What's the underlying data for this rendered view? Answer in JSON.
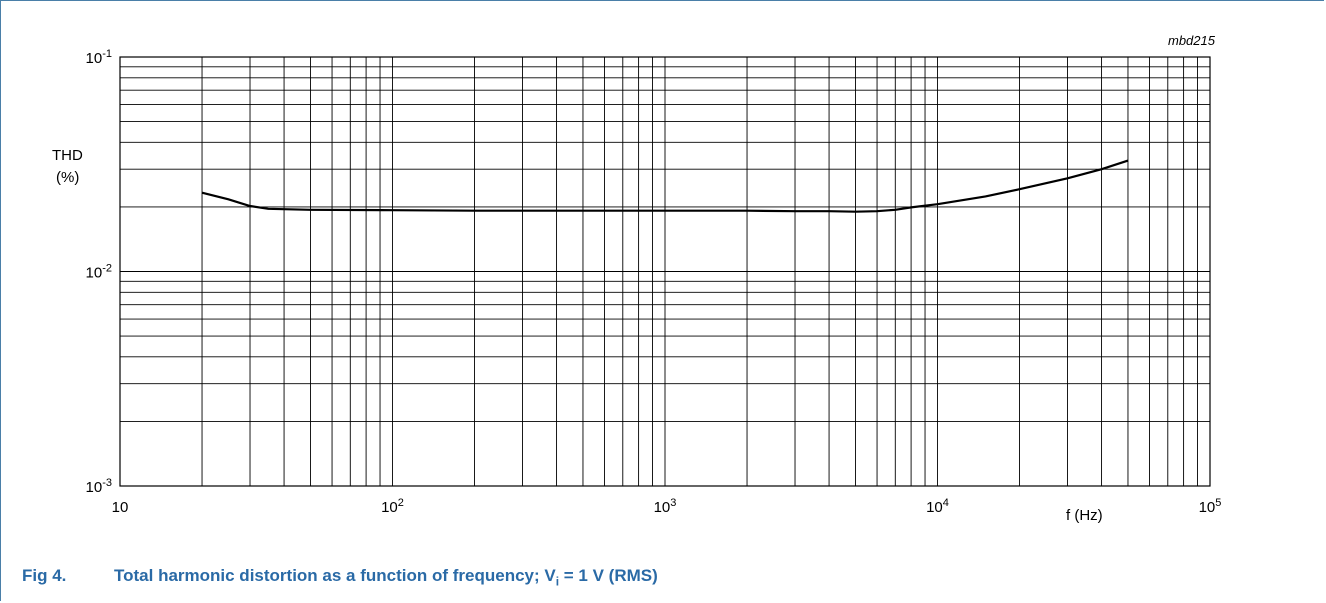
{
  "caption": {
    "figure": "Fig 4.",
    "title_main": "Total harmonic distortion as a function of frequency; V",
    "title_sub": "i",
    "title_end": " = 1 V (RMS)"
  },
  "colors": {
    "caption": "#2a6aa6",
    "grid": "#000000",
    "curve": "#000000",
    "frame": "#4a7fa8"
  },
  "chart_data": {
    "type": "line",
    "code": "mbd215",
    "xlabel": "f (Hz)",
    "ylabel_line1": "THD",
    "ylabel_line2": "(%)",
    "x_scale": "log",
    "y_scale": "log",
    "xlim": [
      10,
      100000
    ],
    "ylim": [
      0.001,
      0.1
    ],
    "grid": true,
    "x_ticks": [
      {
        "base": "10",
        "exp": "",
        "value": 10
      },
      {
        "base": "10",
        "exp": "2",
        "value": 100
      },
      {
        "base": "10",
        "exp": "3",
        "value": 1000
      },
      {
        "base": "10",
        "exp": "4",
        "value": 10000
      },
      {
        "base": "10",
        "exp": "5",
        "value": 100000
      }
    ],
    "y_ticks": [
      {
        "base": "10",
        "exp": "-1",
        "value": 0.1
      },
      {
        "base": "10",
        "exp": "-2",
        "value": 0.01
      },
      {
        "base": "10",
        "exp": "-3",
        "value": 0.001
      }
    ],
    "series": [
      {
        "x": [
          20,
          25,
          30,
          35,
          50,
          100,
          200,
          500,
          1000,
          2000,
          3000,
          4000,
          5000,
          6000,
          7000,
          8000,
          10000,
          15000,
          20000,
          30000,
          40000,
          50000
        ],
        "y": [
          0.0233,
          0.0217,
          0.0202,
          0.0196,
          0.0194,
          0.0193,
          0.0192,
          0.0192,
          0.0192,
          0.0192,
          0.0191,
          0.0191,
          0.019,
          0.0191,
          0.0194,
          0.0199,
          0.0206,
          0.0224,
          0.0242,
          0.0272,
          0.03,
          0.0329
        ]
      }
    ]
  }
}
